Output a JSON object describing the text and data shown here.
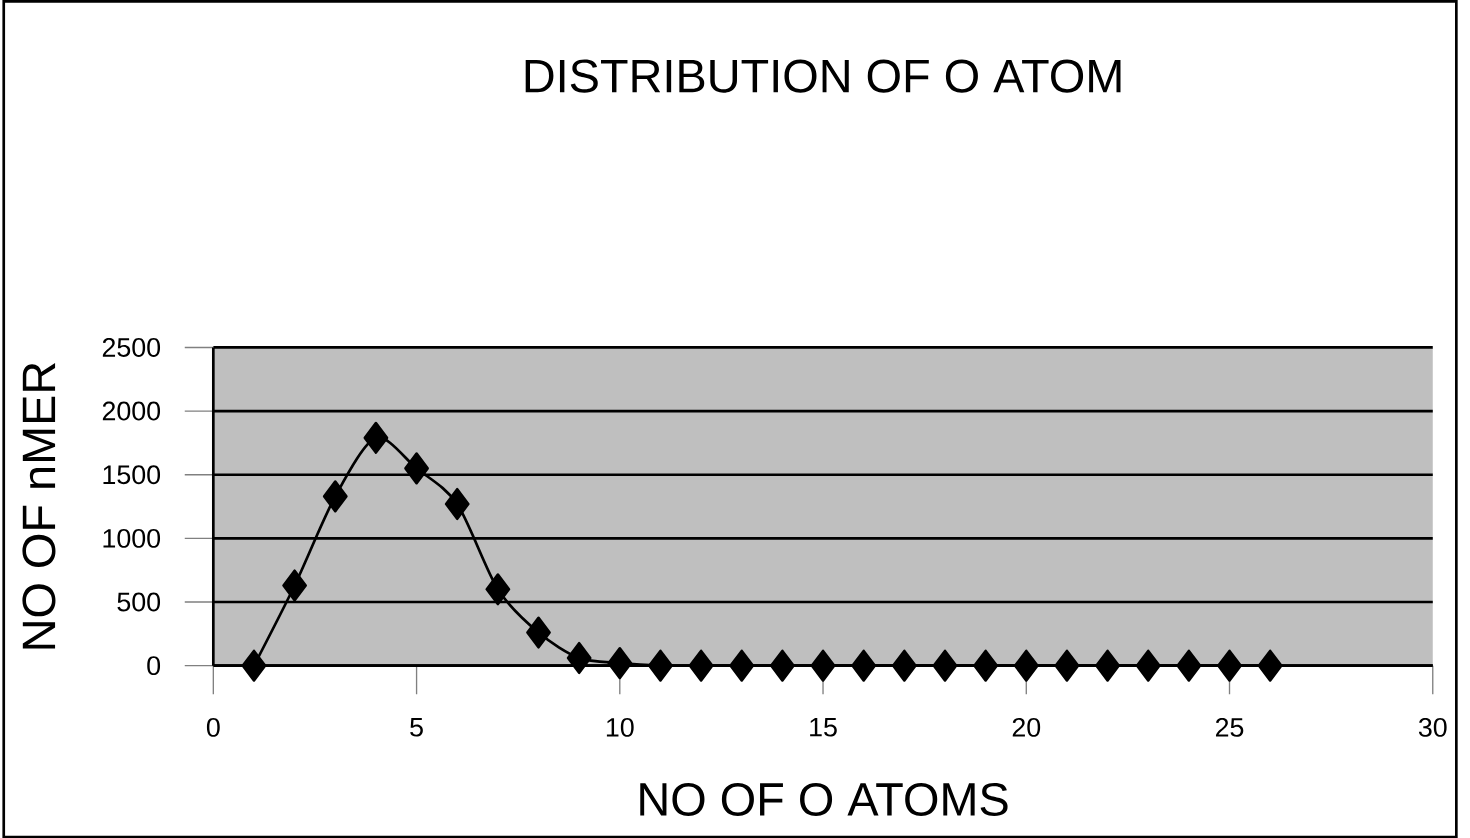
{
  "chart_data": {
    "type": "line",
    "title": "DISTRIBUTION OF O ATOM",
    "xlabel": "NO OF O ATOMS",
    "ylabel": "NO OF nMER",
    "x": [
      1,
      2,
      3,
      4,
      5,
      6,
      7,
      8,
      9,
      10,
      11,
      12,
      13,
      14,
      15,
      16,
      17,
      18,
      19,
      20,
      21,
      22,
      23,
      24,
      25,
      26
    ],
    "values": [
      0,
      630,
      1330,
      1790,
      1550,
      1270,
      600,
      260,
      60,
      20,
      0,
      0,
      0,
      0,
      0,
      0,
      0,
      0,
      0,
      0,
      0,
      0,
      0,
      0,
      0,
      0
    ],
    "color": "#000000",
    "marker": "diamond",
    "line_style": "solid",
    "grid": "y",
    "xlim": [
      0,
      30
    ],
    "xticks": [
      0,
      5,
      10,
      15,
      20,
      25,
      30
    ],
    "ylim": [
      0,
      2500
    ],
    "yticks": [
      0,
      500,
      1000,
      1500,
      2000,
      2500
    ]
  }
}
